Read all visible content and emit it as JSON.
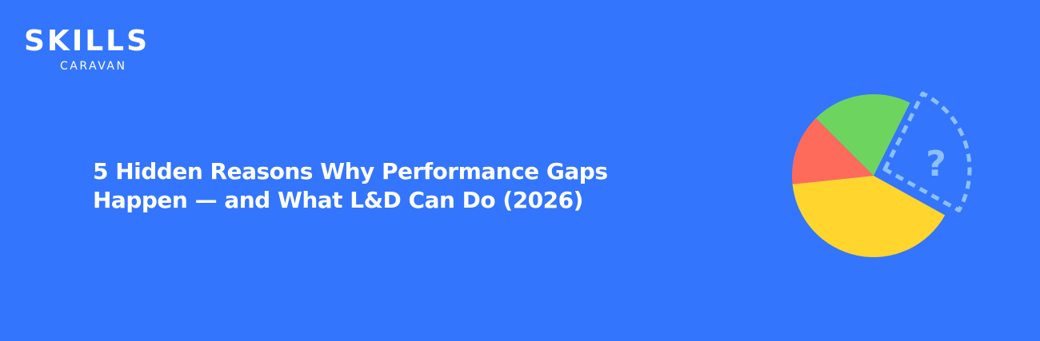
{
  "logo": {
    "name": "SKILLS",
    "tagline": "CARAVAN"
  },
  "title": {
    "lines": [
      "5 Hidden Reasons Why Performance Gaps",
      "Happen — and What L&D Can Do (2026)"
    ]
  },
  "illustration": {
    "symbol": "?"
  }
}
